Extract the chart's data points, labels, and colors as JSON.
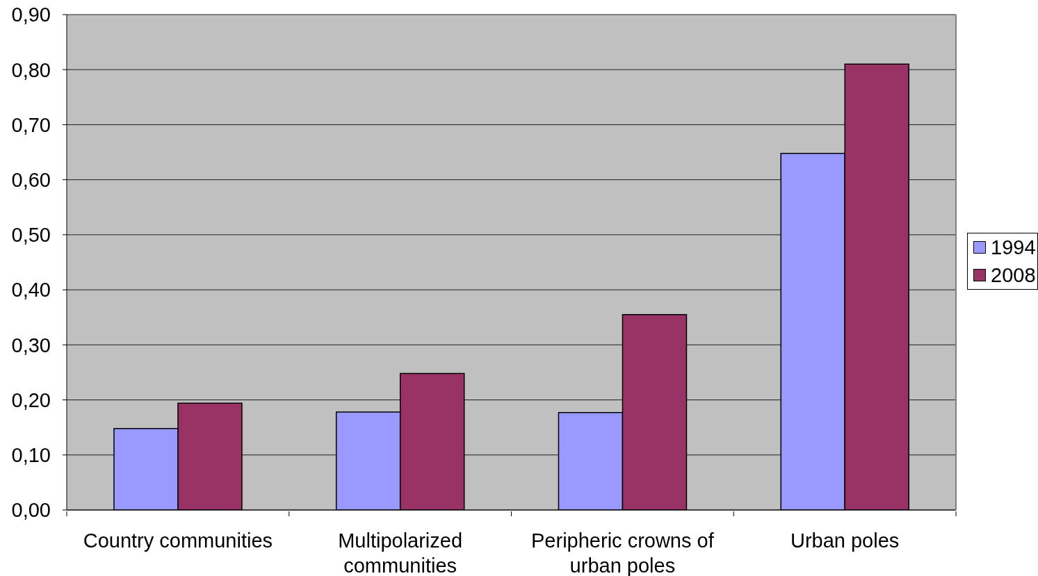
{
  "chart_data": {
    "type": "bar",
    "categories": [
      "Country communities",
      "Multipolarized communities",
      "Peripheric crowns of urban poles",
      "Urban poles"
    ],
    "series": [
      {
        "name": "1994",
        "color": "#9999ff",
        "values": [
          0.148,
          0.178,
          0.177,
          0.648
        ]
      },
      {
        "name": "2008",
        "color": "#993366",
        "values": [
          0.194,
          0.248,
          0.355,
          0.81
        ]
      }
    ],
    "ylim": [
      0,
      0.9
    ],
    "yticks": [
      {
        "value": 0,
        "label": "0,00"
      },
      {
        "value": 0.1,
        "label": "0,10"
      },
      {
        "value": 0.2,
        "label": "0,20"
      },
      {
        "value": 0.3,
        "label": "0,30"
      },
      {
        "value": 0.4,
        "label": "0,40"
      },
      {
        "value": 0.5,
        "label": "0,50"
      },
      {
        "value": 0.6,
        "label": "0,60"
      },
      {
        "value": 0.7,
        "label": "0,70"
      },
      {
        "value": 0.8,
        "label": "0,80"
      },
      {
        "value": 0.9,
        "label": "0,90"
      }
    ],
    "grid": "y",
    "legend": "right"
  }
}
